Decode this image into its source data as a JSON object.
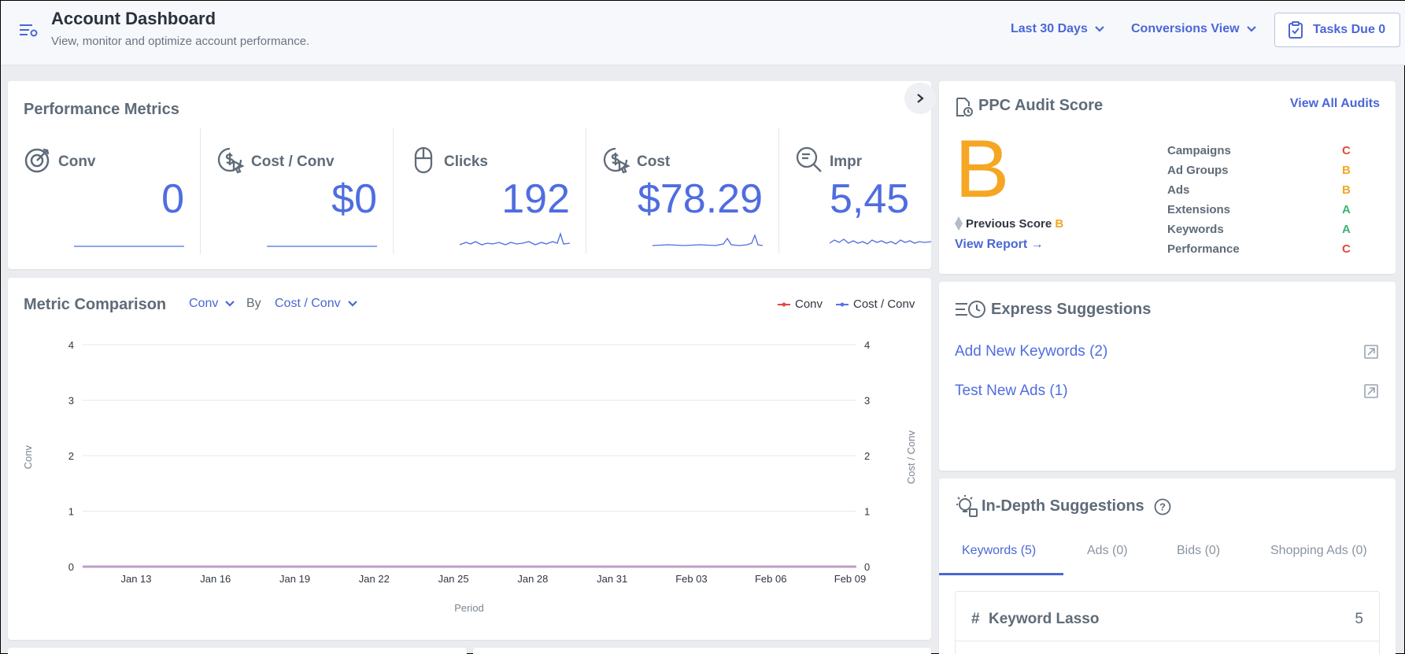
{
  "header": {
    "title": "Account Dashboard",
    "subtitle": "View, monitor and optimize account performance.",
    "date_range": "Last 30 Days",
    "view": "Conversions View",
    "tasks": "Tasks Due 0"
  },
  "performance": {
    "title": "Performance Metrics",
    "metrics": [
      {
        "label": "Conv",
        "value": "0"
      },
      {
        "label": "Cost / Conv",
        "value": "$0"
      },
      {
        "label": "Clicks",
        "value": "192"
      },
      {
        "label": "Cost",
        "value": "$78.29"
      },
      {
        "label": "Impr",
        "value": "5,45"
      }
    ]
  },
  "audit": {
    "title": "PPC Audit Score",
    "view_all": "View All Audits",
    "grade": "B",
    "previous_label": "Previous Score",
    "previous_grade": "B",
    "view_report": "View Report →",
    "rows": [
      {
        "label": "Campaigns",
        "grade": "C",
        "color": "#e8453c"
      },
      {
        "label": "Ad Groups",
        "grade": "B",
        "color": "#f5a623"
      },
      {
        "label": "Ads",
        "grade": "B",
        "color": "#f5a623"
      },
      {
        "label": "Extensions",
        "grade": "A",
        "color": "#3cb371"
      },
      {
        "label": "Keywords",
        "grade": "A",
        "color": "#3cb371"
      },
      {
        "label": "Performance",
        "grade": "C",
        "color": "#e8453c"
      }
    ]
  },
  "comparison": {
    "title": "Metric Comparison",
    "metric1": "Conv",
    "by": "By",
    "metric2": "Cost / Conv",
    "legend": [
      "Conv",
      "Cost / Conv"
    ]
  },
  "express": {
    "title": "Express Suggestions",
    "items": [
      "Add New Keywords (2)",
      "Test New Ads (1)"
    ]
  },
  "indepth": {
    "title": "In-Depth Suggestions",
    "tabs": [
      "Keywords (5)",
      "Ads (0)",
      "Bids (0)",
      "Shopping Ads (0)"
    ],
    "hash": "#",
    "item_label": "Keyword Lasso",
    "item_count": "5"
  },
  "chart_data": {
    "type": "line",
    "x": [
      "Jan 13",
      "Jan 16",
      "Jan 19",
      "Jan 22",
      "Jan 25",
      "Jan 28",
      "Jan 31",
      "Feb 03",
      "Feb 06",
      "Feb 09"
    ],
    "series": [
      {
        "name": "Conv",
        "values": [
          0,
          0,
          0,
          0,
          0,
          0,
          0,
          0,
          0,
          0
        ],
        "color": "#e8453c"
      },
      {
        "name": "Cost / Conv",
        "values": [
          0,
          0,
          0,
          0,
          0,
          0,
          0,
          0,
          0,
          0
        ],
        "color": "#5b72e6"
      }
    ],
    "yticks": [
      0,
      1,
      2,
      3,
      4
    ],
    "ylim": [
      0,
      4
    ],
    "xlabel": "Period",
    "ylabel": "Conv",
    "y2label": "Cost / Conv",
    "grid": true,
    "legend_position": "top-right"
  },
  "colors": {
    "accent": "#4f6de0",
    "grade": "#f5a623"
  }
}
